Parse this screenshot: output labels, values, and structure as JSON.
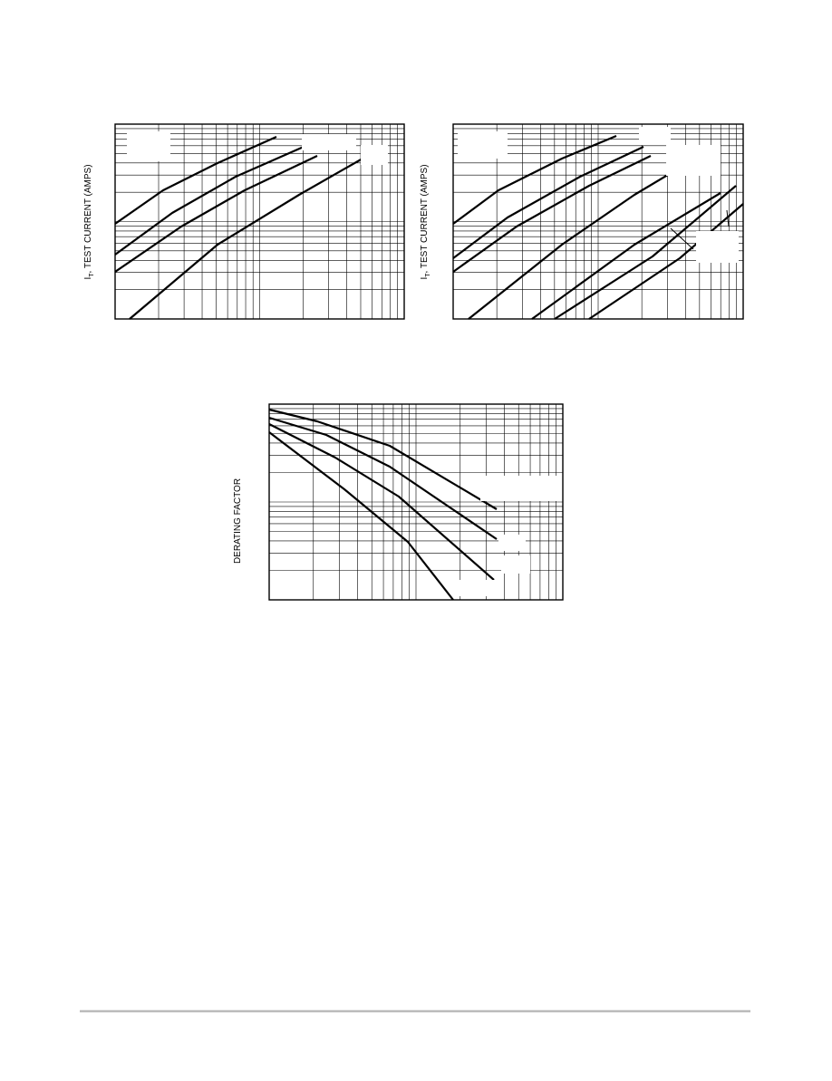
{
  "figures": [
    {
      "y_axis_label": {
        "main": "I",
        "sub": "T",
        "rest": ", TEST CURRENT (AMPS)"
      }
    },
    {
      "y_axis_label": {
        "main": "I",
        "sub": "T",
        "rest": ", TEST CURRENT (AMPS)"
      }
    },
    {
      "y_axis_label": "DERATING FACTOR"
    }
  ]
}
